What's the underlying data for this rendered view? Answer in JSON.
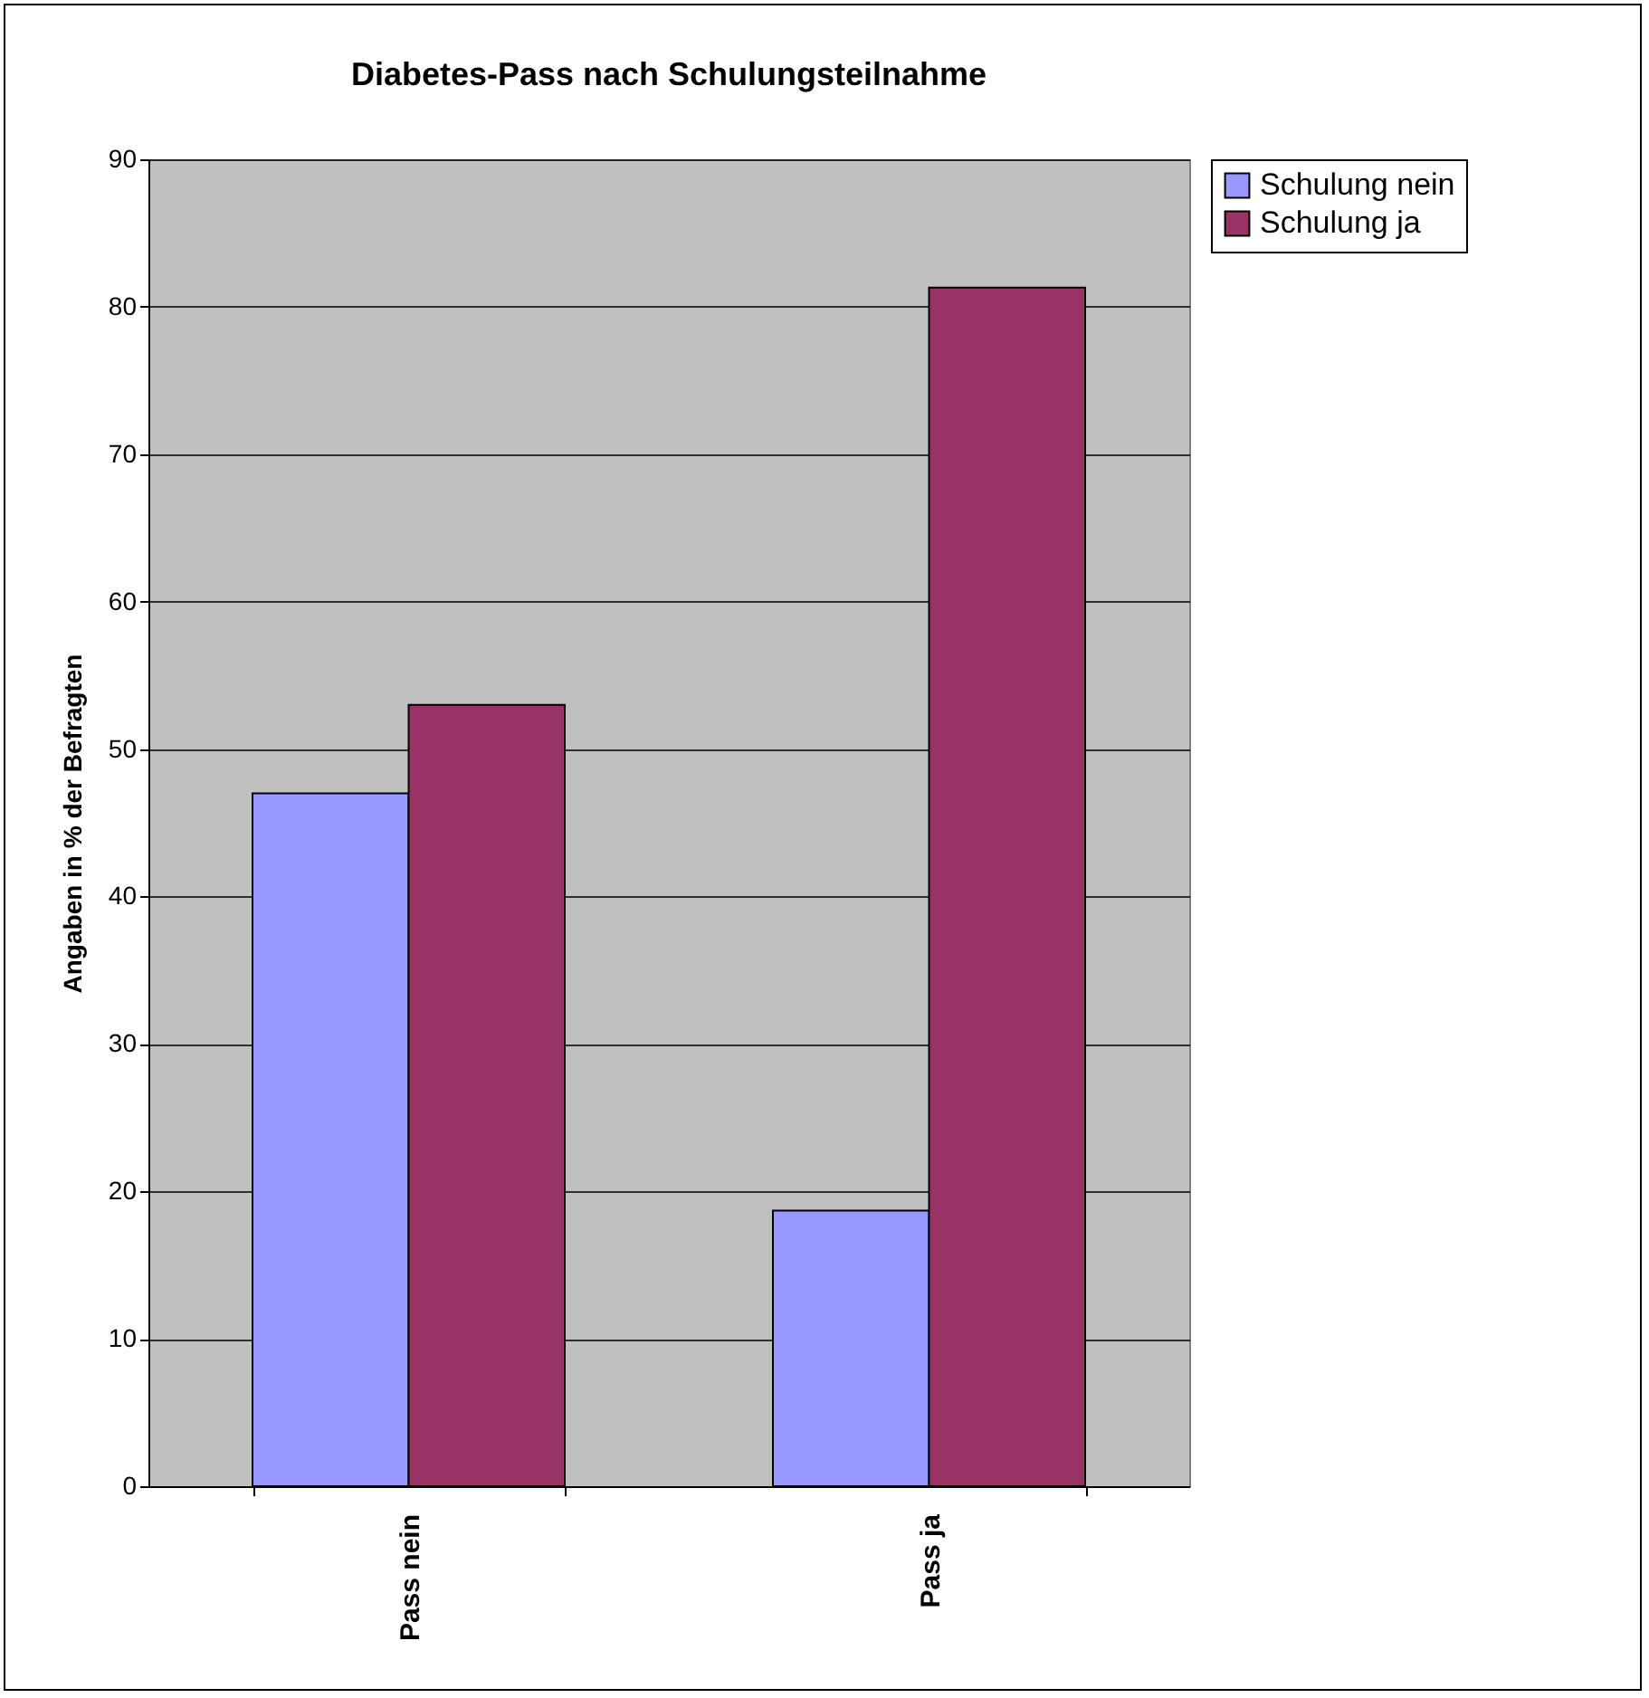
{
  "chart_data": {
    "type": "bar",
    "title": "Diabetes-Pass nach Schulungsteilnahme",
    "ylabel": "Angaben in % der Befragten",
    "categories": [
      "Pass nein",
      "Pass ja"
    ],
    "series": [
      {
        "name": "Schulung nein",
        "color": "#9999ff",
        "values": [
          47,
          18.7
        ]
      },
      {
        "name": "Schulung ja",
        "color": "#993366",
        "values": [
          53,
          81.3
        ]
      }
    ],
    "ylim": [
      0,
      90
    ],
    "yticks": [
      0,
      10,
      20,
      30,
      40,
      50,
      60,
      70,
      80,
      90
    ],
    "grid": "y",
    "legend": "right"
  }
}
